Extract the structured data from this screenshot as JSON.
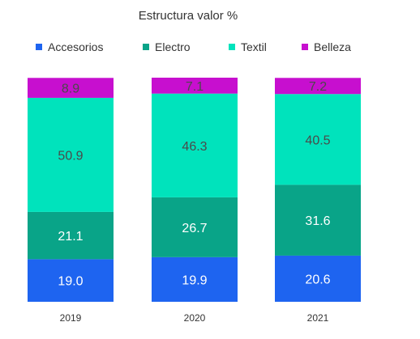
{
  "chart_data": {
    "type": "bar",
    "stacked": true,
    "title": "Estructura valor %",
    "xlabel": "",
    "ylabel": "",
    "ylim": [
      0,
      100
    ],
    "grid": false,
    "legend_position": "top",
    "categories": [
      "2019",
      "2020",
      "2021"
    ],
    "series": [
      {
        "name": "Accesorios",
        "color": "#1E64F0",
        "labels": [
          "19.0",
          "19.9",
          "20.6"
        ],
        "values": [
          19.0,
          19.9,
          20.6
        ]
      },
      {
        "name": "Electro",
        "color": "#09A488",
        "labels": [
          "21.1",
          "26.7",
          "31.6"
        ],
        "values": [
          21.1,
          26.7,
          31.6
        ]
      },
      {
        "name": "Textil",
        "color": "#00E3BC",
        "labels": [
          "50.9",
          "46.3",
          "40.5"
        ],
        "values": [
          50.9,
          46.3,
          40.5
        ]
      },
      {
        "name": "Belleza",
        "color": "#C70FCF",
        "labels": [
          "8.9",
          "7.1",
          "7.2"
        ],
        "values": [
          8.9,
          7.1,
          7.2
        ]
      }
    ],
    "label_colors": [
      "#ffffff",
      "#ffffff",
      "#4a4a4a",
      "#4a4a4a"
    ]
  }
}
